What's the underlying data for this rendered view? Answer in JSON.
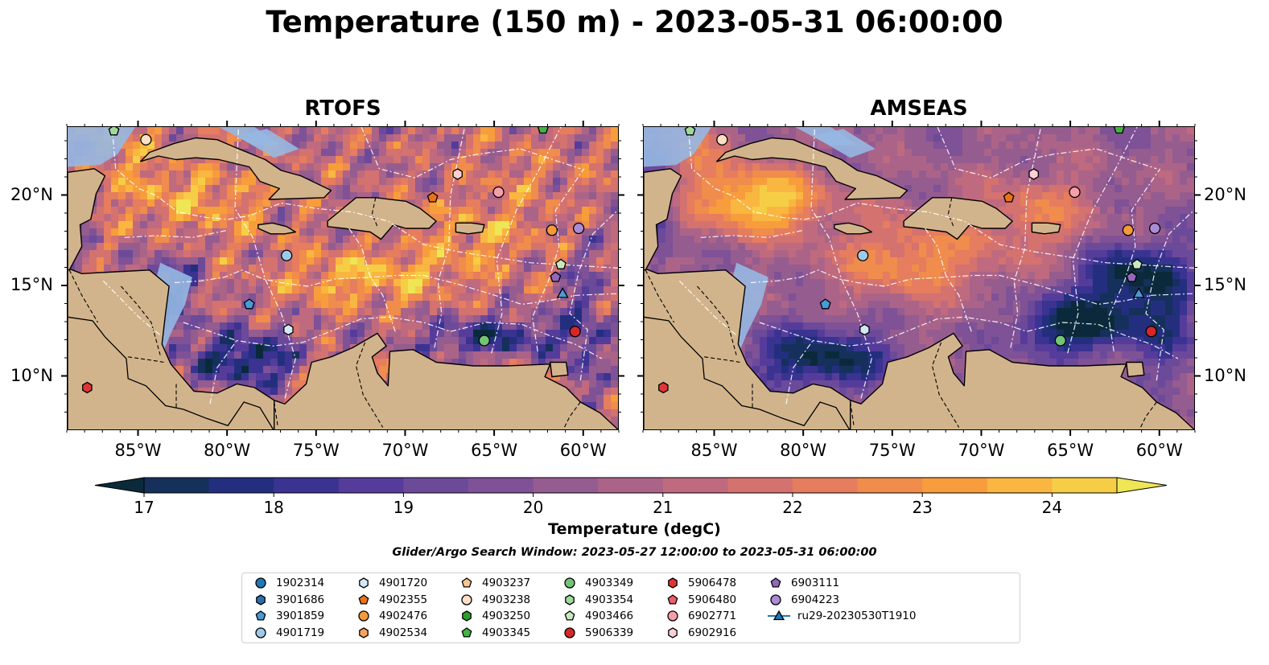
{
  "title": "Temperature (150 m) - 2023-05-31 06:00:00",
  "panels": [
    {
      "title": "RTOFS",
      "style": "rtofs"
    },
    {
      "title": "AMSEAS",
      "style": "amseas"
    }
  ],
  "map_extent": {
    "lon_min": -89,
    "lon_max": -58,
    "lat_min": 7,
    "lat_max": 23.8
  },
  "x_ticks": [
    {
      "lon": -85,
      "label": "85°W"
    },
    {
      "lon": -80,
      "label": "80°W"
    },
    {
      "lon": -75,
      "label": "75°W"
    },
    {
      "lon": -70,
      "label": "70°W"
    },
    {
      "lon": -65,
      "label": "65°W"
    },
    {
      "lon": -60,
      "label": "60°W"
    }
  ],
  "y_ticks": [
    {
      "lat": 20,
      "label": "20°N"
    },
    {
      "lat": 15,
      "label": "15°N"
    },
    {
      "lat": 10,
      "label": "10°N"
    }
  ],
  "colorbar": {
    "label": "Temperature (degC)",
    "min": 16.75,
    "max": 24.5,
    "step": 0.5,
    "extend": "both",
    "ticks": [
      17,
      18,
      19,
      20,
      21,
      22,
      23,
      24
    ],
    "tick_labels": [
      "17",
      "18",
      "19",
      "20",
      "21",
      "22",
      "23",
      "24"
    ],
    "colors": [
      "#0a2a3b",
      "#16305c",
      "#232f7e",
      "#3a3392",
      "#563c9a",
      "#6c4a9a",
      "#7f5196",
      "#955c90",
      "#ab6488",
      "#bf6a7e",
      "#d4726f",
      "#e57d5e",
      "#f08c4c",
      "#f79d3c",
      "#f9b640",
      "#f6ce46",
      "#eee654"
    ]
  },
  "search_window": "Glider/Argo Search Window: 2023-05-27 12:00:00 to 2023-05-31 06:00:00",
  "legend": [
    {
      "label": "1902314",
      "marker": "circle",
      "color": "#1f77b4"
    },
    {
      "label": "3901686",
      "marker": "hexagon",
      "color": "#2c6fb0"
    },
    {
      "label": "3901859",
      "marker": "pentagon",
      "color": "#4a9ad6"
    },
    {
      "label": "4901719",
      "marker": "circle",
      "color": "#9ecae9"
    },
    {
      "label": "4901720",
      "marker": "hexagon",
      "color": "#d4e8f7"
    },
    {
      "label": "4902355",
      "marker": "pentagon",
      "color": "#e8731a"
    },
    {
      "label": "4902476",
      "marker": "circle",
      "color": "#f59a3a"
    },
    {
      "label": "4902534",
      "marker": "hexagon",
      "color": "#f8a35c"
    },
    {
      "label": "4903237",
      "marker": "pentagon",
      "color": "#fbc58f"
    },
    {
      "label": "4903238",
      "marker": "circle",
      "color": "#fde0c5"
    },
    {
      "label": "4903250",
      "marker": "hexagon",
      "color": "#2ca02c"
    },
    {
      "label": "4903345",
      "marker": "pentagon",
      "color": "#43b443"
    },
    {
      "label": "4903349",
      "marker": "circle",
      "color": "#74c476"
    },
    {
      "label": "4903354",
      "marker": "hexagon",
      "color": "#a1d99b"
    },
    {
      "label": "4903466",
      "marker": "pentagon",
      "color": "#c7e9c0"
    },
    {
      "label": "5906339",
      "marker": "circle",
      "color": "#d62728"
    },
    {
      "label": "5906478",
      "marker": "hexagon",
      "color": "#e03535"
    },
    {
      "label": "5906480",
      "marker": "pentagon",
      "color": "#e8606a"
    },
    {
      "label": "6902771",
      "marker": "circle",
      "color": "#f4a0a8"
    },
    {
      "label": "6902916",
      "marker": "hexagon",
      "color": "#fbd0d4"
    },
    {
      "label": "6903111",
      "marker": "pentagon",
      "color": "#9467bd"
    },
    {
      "label": "6904223",
      "marker": "circle",
      "color": "#a98bd6"
    },
    {
      "label": "ru29-20230530T1910",
      "marker": "triangle-line",
      "color": "#1f77b4"
    }
  ],
  "floats": [
    {
      "lon": -86.4,
      "lat": 23.6,
      "marker": "pentagon",
      "color": "#a1d99b"
    },
    {
      "lon": -84.6,
      "lat": 23.1,
      "marker": "circle",
      "color": "#fde0c5"
    },
    {
      "lon": -78.8,
      "lat": 14.0,
      "marker": "pentagon",
      "color": "#4a9ad6"
    },
    {
      "lon": -76.7,
      "lat": 16.7,
      "marker": "circle",
      "color": "#9ecae9"
    },
    {
      "lon": -76.6,
      "lat": 12.6,
      "marker": "hexagon",
      "color": "#d4e8f7"
    },
    {
      "lon": -67.1,
      "lat": 21.2,
      "marker": "hexagon",
      "color": "#fbd0d4"
    },
    {
      "lon": -64.8,
      "lat": 20.2,
      "marker": "circle",
      "color": "#f4a0a8"
    },
    {
      "lon": -68.5,
      "lat": 19.9,
      "marker": "pentagon",
      "color": "#e8731a"
    },
    {
      "lon": -61.8,
      "lat": 18.1,
      "marker": "circle",
      "color": "#f59a3a"
    },
    {
      "lon": -60.3,
      "lat": 18.2,
      "marker": "circle",
      "color": "#a98bd6"
    },
    {
      "lon": -61.3,
      "lat": 16.2,
      "marker": "pentagon",
      "color": "#c7e9c0"
    },
    {
      "lon": -61.6,
      "lat": 15.5,
      "marker": "pentagon",
      "color": "#9467bd"
    },
    {
      "lon": -61.2,
      "lat": 14.6,
      "marker": "triangle",
      "color": "#4a9ad6"
    },
    {
      "lon": -65.6,
      "lat": 12.0,
      "marker": "circle",
      "color": "#74c476"
    },
    {
      "lon": -60.5,
      "lat": 12.5,
      "marker": "circle",
      "color": "#d62728"
    },
    {
      "lon": -87.9,
      "lat": 9.4,
      "marker": "hexagon",
      "color": "#e03535"
    },
    {
      "lon": -62.3,
      "lat": 23.7,
      "marker": "pentagon",
      "color": "#43b443"
    }
  ]
}
